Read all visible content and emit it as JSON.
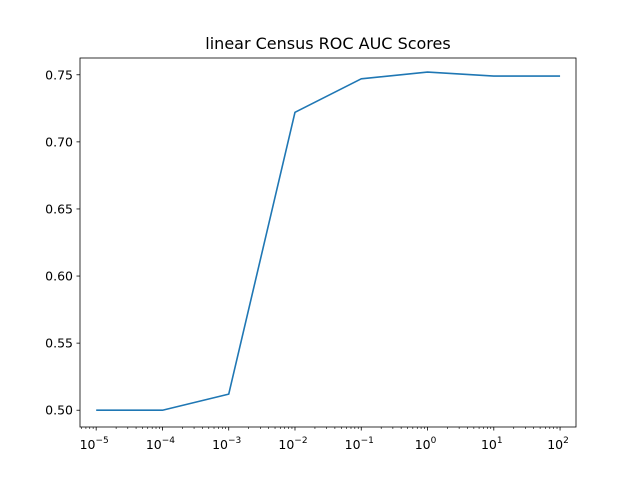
{
  "chart_data": {
    "type": "line",
    "title": "linear Census ROC AUC Scores",
    "xlabel": "",
    "ylabel": "",
    "x_scale": "log",
    "grid": false,
    "legend": "none",
    "x": [
      1e-05,
      0.0001,
      0.001,
      0.01,
      0.1,
      1,
      10,
      100
    ],
    "series": [
      {
        "values": [
          0.5,
          0.5,
          0.512,
          0.722,
          0.747,
          0.752,
          0.749,
          0.749
        ]
      }
    ],
    "xlim": [
      5.7e-06,
      174
    ],
    "ylim": [
      0.4875,
      0.7625
    ],
    "x_ticks": [
      {
        "value": 1e-05,
        "base": "10",
        "exp": "−5"
      },
      {
        "value": 0.0001,
        "base": "10",
        "exp": "−4"
      },
      {
        "value": 0.001,
        "base": "10",
        "exp": "−3"
      },
      {
        "value": 0.01,
        "base": "10",
        "exp": "−2"
      },
      {
        "value": 0.1,
        "base": "10",
        "exp": "−1"
      },
      {
        "value": 1,
        "base": "10",
        "exp": "0"
      },
      {
        "value": 10,
        "base": "10",
        "exp": "1"
      },
      {
        "value": 100,
        "base": "10",
        "exp": "2"
      }
    ],
    "y_ticks": [
      {
        "value": 0.5,
        "label": "0.50"
      },
      {
        "value": 0.55,
        "label": "0.55"
      },
      {
        "value": 0.6,
        "label": "0.60"
      },
      {
        "value": 0.65,
        "label": "0.65"
      },
      {
        "value": 0.7,
        "label": "0.70"
      },
      {
        "value": 0.75,
        "label": "0.75"
      }
    ],
    "line_color": "#1f77b4"
  }
}
